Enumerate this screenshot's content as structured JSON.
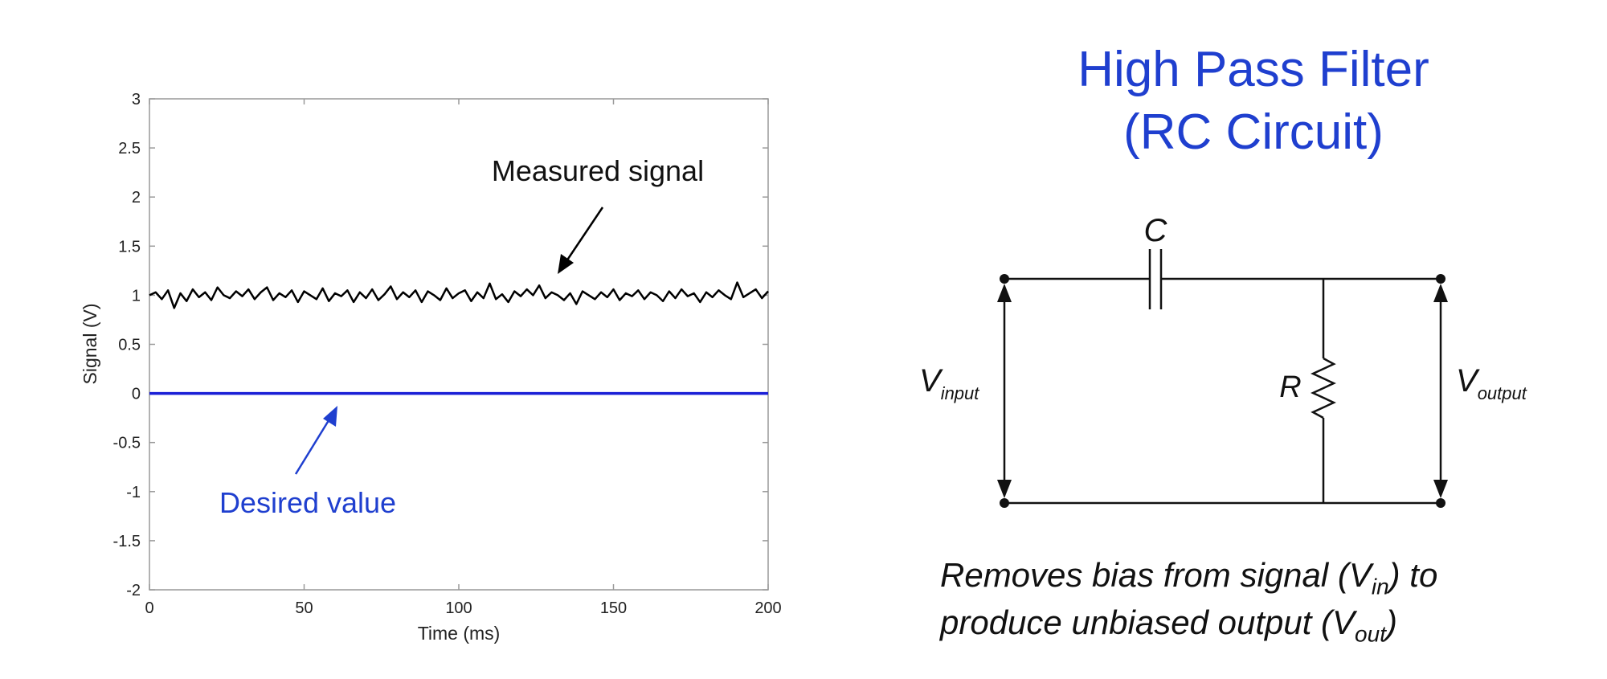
{
  "chart_data": {
    "type": "line",
    "xlabel": "Time (ms)",
    "ylabel": "Signal (V)",
    "xlim": [
      0,
      200
    ],
    "ylim": [
      -2,
      3
    ],
    "x_ticks": [
      "0",
      "50",
      "100",
      "150",
      "200"
    ],
    "y_ticks": [
      "3",
      "2.5",
      "2",
      "1.5",
      "1",
      "0.5",
      "0",
      "-0.5",
      "-1",
      "-1.5",
      "-2"
    ],
    "grid": false,
    "colors": {
      "measured": "#000000",
      "desired": "#1a1fd6",
      "desired_text": "#1f3fcf"
    },
    "series": [
      {
        "key": "measured",
        "x": [
          0,
          2,
          4,
          6,
          8,
          10,
          12,
          14,
          16,
          18,
          20,
          22,
          24,
          26,
          28,
          30,
          32,
          34,
          36,
          38,
          40,
          42,
          44,
          46,
          48,
          50,
          52,
          54,
          56,
          58,
          60,
          62,
          64,
          66,
          68,
          70,
          72,
          74,
          76,
          78,
          80,
          82,
          84,
          86,
          88,
          90,
          92,
          94,
          96,
          98,
          100,
          102,
          104,
          106,
          108,
          110,
          112,
          114,
          116,
          118,
          120,
          122,
          124,
          126,
          128,
          130,
          132,
          134,
          136,
          138,
          140,
          142,
          144,
          146,
          148,
          150,
          152,
          154,
          156,
          158,
          160,
          162,
          164,
          166,
          168,
          170,
          172,
          174,
          176,
          178,
          180,
          182,
          184,
          186,
          188,
          190,
          192,
          194,
          196,
          198,
          200
        ],
        "y": [
          1.0,
          1.03,
          0.96,
          1.05,
          0.87,
          1.02,
          0.94,
          1.06,
          0.98,
          1.03,
          0.95,
          1.08,
          1.0,
          0.97,
          1.04,
          0.99,
          1.06,
          0.96,
          1.03,
          1.08,
          0.95,
          1.02,
          0.98,
          1.05,
          0.93,
          1.04,
          1.0,
          0.96,
          1.07,
          0.94,
          1.02,
          0.99,
          1.05,
          0.93,
          1.03,
          0.97,
          1.06,
          0.95,
          1.01,
          1.09,
          0.96,
          1.03,
          0.98,
          1.05,
          0.93,
          1.04,
          1.0,
          0.95,
          1.07,
          0.97,
          1.02,
          1.05,
          0.94,
          1.03,
          0.97,
          1.12,
          0.96,
          1.01,
          0.93,
          1.04,
          0.99,
          1.06,
          1.0,
          1.1,
          0.97,
          1.03,
          1.0,
          0.95,
          1.02,
          0.91,
          1.04,
          1.0,
          0.96,
          1.03,
          0.98,
          1.06,
          0.95,
          1.02,
          0.99,
          1.05,
          0.96,
          1.03,
          1.0,
          0.94,
          1.04,
          0.97,
          1.06,
          0.99,
          1.02,
          0.93,
          1.03,
          0.98,
          1.05,
          1.0,
          0.96,
          1.13,
          0.98,
          1.02,
          1.06,
          0.97,
          1.04
        ]
      },
      {
        "key": "desired",
        "x": [
          0,
          200
        ],
        "y": [
          0,
          0
        ]
      }
    ],
    "annotations": {
      "measured": "Measured signal",
      "desired": "Desired value"
    }
  },
  "diagram": {
    "title_line1": "High Pass Filter",
    "title_line2": "(RC Circuit)",
    "cap_label": "C",
    "res_label": "R",
    "vin_main": "V",
    "vin_sub": "input",
    "vout_main": "V",
    "vout_sub": "output",
    "caption1_pre": "Removes bias from signal (V",
    "caption1_sub": "in",
    "caption1_post": ") to",
    "caption2_pre": "produce unbiased output (V",
    "caption2_sub": "out",
    "caption2_post": ")"
  }
}
